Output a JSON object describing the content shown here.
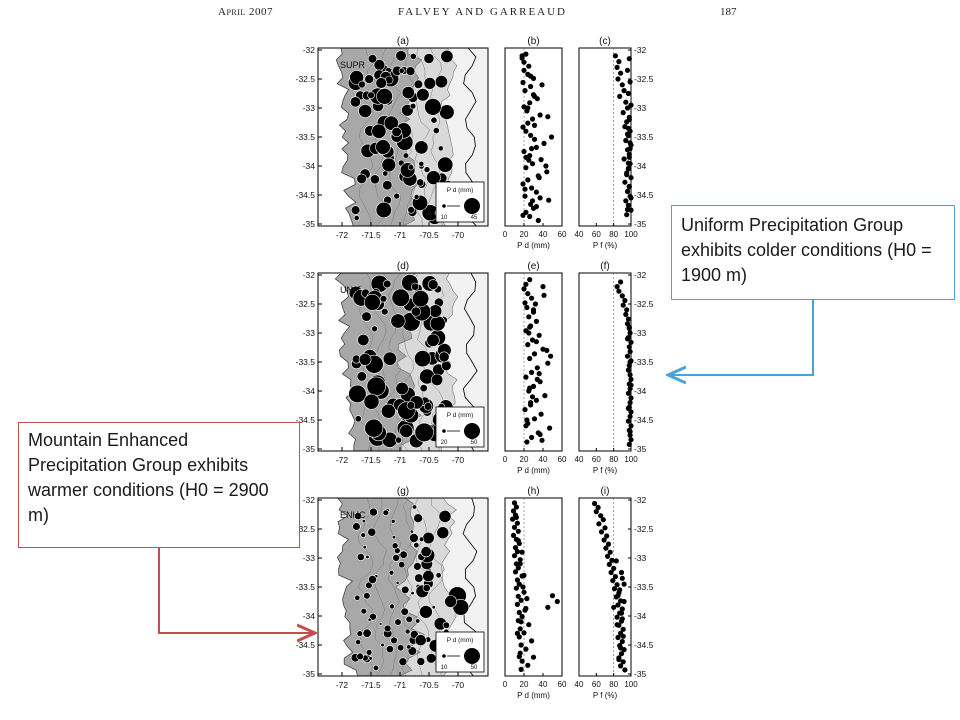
{
  "header": {
    "left": "April 2007",
    "center": "FALVEY AND GARREAUD",
    "right": "187"
  },
  "callouts": {
    "uniform": "Uniform Precipitation Group exhibits colder conditions (H0 = 1900 m)",
    "enhanced": "Mountain Enhanced Precipitation Group exhibits warmer conditions (H0 = 2900 m)"
  },
  "colors": {
    "uniform_callout": "#4aa3d8",
    "enhanced_callout": "#c0504d",
    "map_land": "#a8a8a8"
  },
  "chart_data": [
    {
      "type": "map",
      "panel": "(a)",
      "group": "SUPR",
      "legend_title": "P d (mm)",
      "legend_values": [
        "10",
        "45"
      ],
      "xticks": [
        "-72",
        "-71.5",
        "-71",
        "-70.5",
        "-70"
      ],
      "yticks": [
        "-32",
        "-32.5",
        "-33",
        "-33.5",
        "-34",
        "-34.5",
        "-35"
      ]
    },
    {
      "type": "scatter",
      "panel": "(b)",
      "xticks": [
        "0",
        "20",
        "40",
        "60"
      ],
      "xlabel": "P d (mm)",
      "ylim": [
        -35,
        -32
      ],
      "x": [
        22,
        18,
        20,
        25,
        20,
        24,
        30,
        19,
        27,
        21,
        30,
        34,
        26,
        20,
        23,
        37,
        29,
        24,
        19,
        22,
        27,
        31,
        41,
        33,
        20,
        26,
        38,
        29,
        22,
        44,
        35,
        24,
        19,
        28,
        33,
        21,
        46,
        27,
        30,
        22,
        26,
        35,
        18,
        39,
        24,
        31,
        28,
        43,
        21,
        33,
        27,
        49,
        25,
        36,
        29,
        19,
        31,
        45,
        22,
        37
      ],
      "y": [
        -32.07,
        -32.14,
        -32.21,
        -32.28,
        -32.35,
        -32.42,
        -32.49,
        -32.56,
        -32.63,
        -32.7,
        -32.77,
        -32.84,
        -32.91,
        -32.98,
        -33.05,
        -33.12,
        -33.19,
        -33.26,
        -33.33,
        -33.4,
        -33.47,
        -33.54,
        -33.61,
        -33.68,
        -33.75,
        -33.82,
        -33.89,
        -33.96,
        -34.03,
        -34.1,
        -34.17,
        -34.24,
        -34.31,
        -34.38,
        -34.45,
        -34.52,
        -34.59,
        -34.66,
        -34.73,
        -34.8,
        -34.87,
        -34.94,
        -32.1,
        -32.6,
        -33.0,
        -33.3,
        -33.7,
        -34.0,
        -34.4,
        -34.7,
        -32.45,
        -33.5,
        -33.9,
        -34.2,
        -34.6,
        -34.85,
        -32.8,
        -33.15,
        -33.85,
        -34.55
      ]
    },
    {
      "type": "scatter",
      "panel": "(c)",
      "xticks": [
        "40",
        "60",
        "80",
        "100"
      ],
      "xlabel": "P f (%)",
      "ylim": [
        -35,
        -32
      ],
      "x": [
        82,
        86,
        84,
        88,
        85,
        90,
        92,
        87,
        94,
        96,
        91,
        98,
        95,
        93,
        99,
        97,
        94,
        100,
        96,
        98,
        92,
        99,
        97,
        95,
        100,
        93,
        98,
        96,
        99,
        94,
        97,
        100,
        95,
        98,
        96,
        99,
        97,
        100,
        98,
        96,
        99,
        97,
        95,
        98,
        100,
        96,
        97,
        99,
        98,
        97
      ],
      "y": [
        -32.1,
        -32.2,
        -32.3,
        -32.4,
        -32.5,
        -32.6,
        -32.7,
        -32.8,
        -32.9,
        -33.0,
        -33.08,
        -33.16,
        -33.24,
        -33.32,
        -33.4,
        -33.48,
        -33.56,
        -33.64,
        -33.72,
        -33.8,
        -33.88,
        -33.96,
        -34.04,
        -34.12,
        -34.2,
        -34.28,
        -34.36,
        -34.44,
        -34.52,
        -34.6,
        -34.68,
        -34.76,
        -34.84,
        -32.15,
        -32.35,
        -32.55,
        -32.75,
        -32.95,
        -33.2,
        -33.45,
        -33.7,
        -33.95,
        -34.15,
        -34.35,
        -34.55,
        -34.75,
        -33.35,
        -33.6,
        -33.85,
        -34.05
      ]
    },
    {
      "type": "map",
      "panel": "(d)",
      "group": "UNIF",
      "legend_title": "P d (mm)",
      "legend_values": [
        "20",
        "50"
      ],
      "xticks": [
        "-72",
        "-71.5",
        "-71",
        "-70.5",
        "-70"
      ],
      "yticks": [
        "-32",
        "-32.5",
        "-33",
        "-33.5",
        "-34",
        "-34.5",
        "-35"
      ]
    },
    {
      "type": "scatter",
      "panel": "(e)",
      "xticks": [
        "0",
        "20",
        "40",
        "60"
      ],
      "xlabel": "P d (mm)",
      "ylim": [
        -35,
        -32
      ],
      "x": [
        26,
        22,
        20,
        24,
        28,
        21,
        23,
        30,
        25,
        33,
        27,
        22,
        36,
        29,
        24,
        40,
        31,
        26,
        45,
        34,
        28,
        22,
        37,
        30,
        25,
        42,
        33,
        27,
        21,
        38,
        31,
        24,
        47,
        35,
        28,
        23,
        40,
        32,
        26,
        44,
        36,
        29,
        23,
        39,
        30,
        25,
        48,
        34,
        27,
        22,
        41,
        33,
        26,
        37
      ],
      "y": [
        -32.08,
        -32.16,
        -32.24,
        -32.32,
        -32.4,
        -32.48,
        -32.56,
        -32.64,
        -32.72,
        -32.8,
        -32.88,
        -32.96,
        -33.04,
        -33.12,
        -33.2,
        -33.28,
        -33.36,
        -33.44,
        -33.52,
        -33.6,
        -33.68,
        -33.76,
        -33.84,
        -33.92,
        -34.0,
        -34.08,
        -34.16,
        -34.24,
        -34.32,
        -34.4,
        -34.48,
        -34.56,
        -34.64,
        -34.72,
        -34.8,
        -34.88,
        -32.2,
        -32.5,
        -32.9,
        -33.3,
        -33.7,
        -34.1,
        -34.5,
        -34.85,
        -32.6,
        -33.0,
        -33.4,
        -33.8,
        -34.2,
        -34.6,
        -32.35,
        -33.15,
        -33.95,
        -34.75
      ]
    },
    {
      "type": "scatter",
      "panel": "(f)",
      "xticks": [
        "40",
        "60",
        "80",
        "100"
      ],
      "xlabel": "P f (%)",
      "ylim": [
        -35,
        -32
      ],
      "x": [
        88,
        84,
        86,
        90,
        93,
        91,
        95,
        94,
        97,
        96,
        98,
        99,
        97,
        100,
        98,
        99,
        96,
        100,
        98,
        97,
        99,
        100,
        98,
        99,
        97,
        100,
        99,
        98,
        100,
        99,
        97,
        100,
        98,
        99,
        100,
        98,
        96,
        99,
        100,
        97,
        99,
        98
      ],
      "y": [
        -32.12,
        -32.2,
        -32.28,
        -32.36,
        -32.44,
        -32.52,
        -32.6,
        -32.68,
        -32.76,
        -32.84,
        -32.92,
        -33.0,
        -33.08,
        -33.16,
        -33.24,
        -33.32,
        -33.4,
        -33.48,
        -33.56,
        -33.64,
        -33.72,
        -33.8,
        -33.88,
        -33.96,
        -34.04,
        -34.12,
        -34.2,
        -34.28,
        -34.36,
        -34.44,
        -34.52,
        -34.6,
        -34.68,
        -34.76,
        -34.84,
        -34.92,
        -33.1,
        -33.5,
        -33.9,
        -34.3,
        -34.7,
        -32.9
      ]
    },
    {
      "type": "map",
      "panel": "(g)",
      "group": "ENHC",
      "legend_title": "P d (mm)",
      "legend_values": [
        "10",
        "50"
      ],
      "xticks": [
        "-72",
        "-71.5",
        "-71",
        "-70.5",
        "-70"
      ],
      "yticks": [
        "-32",
        "-32.5",
        "-33",
        "-33.5",
        "-34",
        "-34.5",
        "-35"
      ]
    },
    {
      "type": "scatter",
      "panel": "(h)",
      "xticks": [
        "0",
        "20",
        "40",
        "60"
      ],
      "xlabel": "P d (mm)",
      "ylim": [
        -35,
        -32
      ],
      "x": [
        10,
        12,
        9,
        11,
        8,
        13,
        10,
        14,
        9,
        12,
        15,
        11,
        13,
        10,
        16,
        12,
        14,
        11,
        18,
        13,
        15,
        12,
        20,
        14,
        17,
        13,
        22,
        15,
        18,
        14,
        25,
        16,
        20,
        15,
        28,
        17,
        22,
        16,
        30,
        18,
        24,
        17,
        50,
        55,
        45,
        12,
        14,
        16,
        19,
        21,
        13,
        15,
        18,
        20,
        23,
        17
      ],
      "y": [
        -32.05,
        -32.12,
        -32.19,
        -32.26,
        -32.33,
        -32.4,
        -32.47,
        -32.54,
        -32.61,
        -32.68,
        -32.75,
        -32.82,
        -32.89,
        -32.96,
        -33.03,
        -33.1,
        -33.17,
        -33.24,
        -33.31,
        -33.38,
        -33.45,
        -33.52,
        -33.59,
        -33.66,
        -33.73,
        -33.8,
        -33.87,
        -33.94,
        -34.01,
        -34.08,
        -34.15,
        -34.22,
        -34.29,
        -34.36,
        -34.43,
        -34.5,
        -34.57,
        -34.64,
        -34.71,
        -34.78,
        -34.85,
        -34.92,
        -33.65,
        -33.75,
        -33.85,
        -32.3,
        -32.7,
        -33.1,
        -33.5,
        -33.9,
        -34.3,
        -34.7,
        -32.9,
        -33.3,
        -33.7,
        -34.1
      ]
    },
    {
      "type": "scatter",
      "panel": "(i)",
      "xticks": [
        "40",
        "60",
        "80",
        "100"
      ],
      "xlabel": "P f (%)",
      "ylim": [
        -35,
        -32
      ],
      "x": [
        58,
        62,
        60,
        65,
        68,
        63,
        70,
        66,
        72,
        69,
        74,
        71,
        76,
        73,
        78,
        75,
        80,
        77,
        82,
        79,
        84,
        81,
        86,
        83,
        88,
        85,
        90,
        87,
        84,
        89,
        86,
        91,
        88,
        85,
        90,
        87,
        92,
        89,
        86,
        91,
        88,
        93,
        90,
        87,
        92,
        89,
        84,
        91,
        88,
        86,
        83,
        89,
        92,
        85,
        80,
        90
      ],
      "y": [
        -32.06,
        -32.13,
        -32.2,
        -32.27,
        -32.34,
        -32.41,
        -32.48,
        -32.55,
        -32.62,
        -32.69,
        -32.76,
        -32.83,
        -32.9,
        -32.97,
        -33.04,
        -33.11,
        -33.18,
        -33.25,
        -33.32,
        -33.39,
        -33.46,
        -33.53,
        -33.6,
        -33.67,
        -33.74,
        -33.81,
        -33.88,
        -33.95,
        -34.02,
        -34.09,
        -34.16,
        -34.23,
        -34.3,
        -34.37,
        -34.44,
        -34.51,
        -34.58,
        -34.65,
        -34.72,
        -34.79,
        -34.86,
        -34.93,
        -33.35,
        -33.55,
        -33.75,
        -33.95,
        -34.15,
        -34.35,
        -34.55,
        -34.75,
        -33.05,
        -33.25,
        -33.45,
        -33.65,
        -33.85,
        -34.05
      ]
    }
  ]
}
